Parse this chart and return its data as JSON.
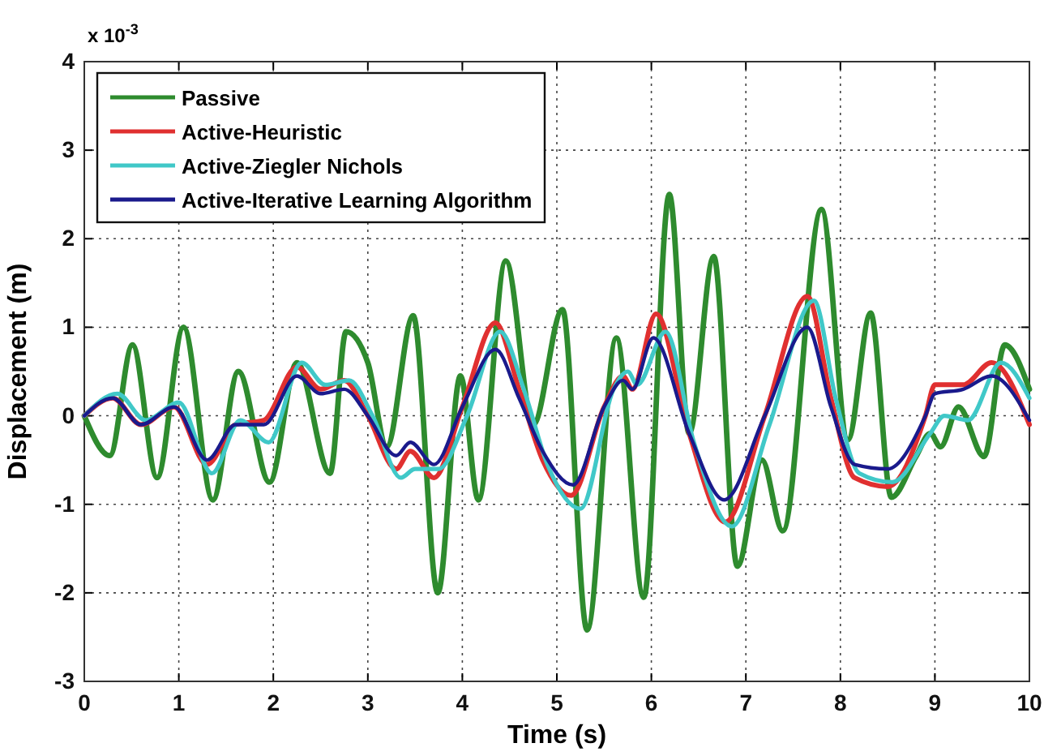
{
  "chart_data": {
    "type": "line",
    "xlabel": "Time (s)",
    "ylabel": "Displacement (m)",
    "annotations": [
      "x 10$^{-3}$"
    ],
    "xlim": [
      0,
      10
    ],
    "xticks": [
      0,
      1,
      2,
      3,
      4,
      5,
      6,
      7,
      8,
      9,
      10
    ],
    "ylim": [
      -3,
      4
    ],
    "yticks": [
      -3,
      -2,
      -1,
      0,
      1,
      2,
      3,
      4
    ],
    "grid": true,
    "legend": "top left",
    "marker": "none",
    "line_style": "solid",
    "series": [
      {
        "name": "Passive",
        "color": "#2e8b2e",
        "x": [
          0,
          0.27,
          0.51,
          0.77,
          1.05,
          1.36,
          1.63,
          1.96,
          2.25,
          2.6,
          2.77,
          3.0,
          3.2,
          3.48,
          3.74,
          3.98,
          4.17,
          4.46,
          4.75,
          5.06,
          5.32,
          5.63,
          5.92,
          6.19,
          6.4,
          6.66,
          6.91,
          7.17,
          7.39,
          7.8,
          8.08,
          8.32,
          8.54,
          8.8,
          8.95,
          9.06,
          9.25,
          9.52,
          9.74,
          10
        ],
        "values": [
          0,
          -0.45,
          0.8,
          -0.7,
          1.0,
          -0.95,
          0.5,
          -0.75,
          0.6,
          -0.65,
          0.95,
          0.6,
          -0.35,
          1.13,
          -2.0,
          0.45,
          -0.95,
          1.75,
          -0.1,
          1.2,
          -2.42,
          0.88,
          -2.05,
          2.5,
          -0.2,
          1.8,
          -1.7,
          -0.5,
          -1.3,
          2.33,
          -0.27,
          1.16,
          -0.92,
          -0.46,
          -0.2,
          -0.35,
          0.1,
          -0.46,
          0.8,
          0.3
        ]
      },
      {
        "name": "Active-Heuristic",
        "color": "#e03030",
        "x": [
          0,
          0.3,
          0.6,
          0.95,
          1.3,
          1.6,
          1.9,
          2.25,
          2.5,
          2.75,
          3.0,
          3.3,
          3.45,
          3.7,
          4.0,
          4.35,
          4.6,
          4.85,
          5.15,
          5.5,
          5.7,
          5.8,
          6.05,
          6.4,
          6.78,
          7.2,
          7.65,
          7.9,
          8.15,
          8.5,
          8.9,
          9.0,
          9.3,
          9.6,
          10
        ],
        "values": [
          0,
          0.2,
          -0.1,
          0.1,
          -0.55,
          -0.1,
          -0.05,
          0.55,
          0.3,
          0.4,
          0,
          -0.6,
          -0.4,
          -0.7,
          0.1,
          1.05,
          0.3,
          -0.5,
          -0.9,
          0.1,
          0.45,
          0.3,
          1.15,
          -0.2,
          -1.2,
          0,
          1.35,
          0.2,
          -0.7,
          -0.8,
          0,
          0.35,
          0.35,
          0.6,
          -0.1
        ]
      },
      {
        "name": "Active-Ziegler Nichols",
        "color": "#40c8c8",
        "x": [
          0,
          0.35,
          0.65,
          1.0,
          1.35,
          1.65,
          1.95,
          2.3,
          2.55,
          2.8,
          3.05,
          3.35,
          3.5,
          3.75,
          4.05,
          4.4,
          4.65,
          4.9,
          5.25,
          5.6,
          5.75,
          5.85,
          6.15,
          6.45,
          6.85,
          7.25,
          7.72,
          7.95,
          8.2,
          8.55,
          8.95,
          9.1,
          9.35,
          9.7,
          10
        ],
        "values": [
          0,
          0.25,
          -0.05,
          0.15,
          -0.65,
          -0.05,
          -0.3,
          0.6,
          0.35,
          0.4,
          0,
          -0.7,
          -0.6,
          -0.6,
          0,
          0.95,
          0.3,
          -0.55,
          -1.05,
          0.3,
          0.5,
          0.35,
          0.95,
          -0.3,
          -1.25,
          -0.1,
          1.3,
          0.2,
          -0.65,
          -0.75,
          -0.2,
          0,
          -0.05,
          0.6,
          0.2
        ]
      },
      {
        "name": "Active-Iterative Learning Algorithm",
        "color": "#1a1a8c",
        "x": [
          0,
          0.3,
          0.6,
          0.95,
          1.3,
          1.6,
          1.9,
          2.25,
          2.5,
          2.75,
          3.0,
          3.3,
          3.45,
          3.7,
          4.0,
          4.35,
          4.6,
          4.85,
          5.17,
          5.5,
          5.7,
          5.8,
          6.02,
          6.4,
          6.77,
          7.2,
          7.65,
          7.9,
          8.15,
          8.5,
          8.9,
          9.0,
          9.3,
          9.6,
          10
        ],
        "values": [
          0,
          0.2,
          -0.1,
          0.1,
          -0.5,
          -0.1,
          -0.1,
          0.45,
          0.25,
          0.3,
          0,
          -0.45,
          -0.3,
          -0.55,
          0.1,
          0.75,
          0.2,
          -0.4,
          -0.78,
          0.1,
          0.4,
          0.3,
          0.88,
          -0.2,
          -0.95,
          0,
          1.0,
          0.1,
          -0.55,
          -0.6,
          0,
          0.25,
          0.3,
          0.45,
          -0.05
        ]
      }
    ]
  }
}
